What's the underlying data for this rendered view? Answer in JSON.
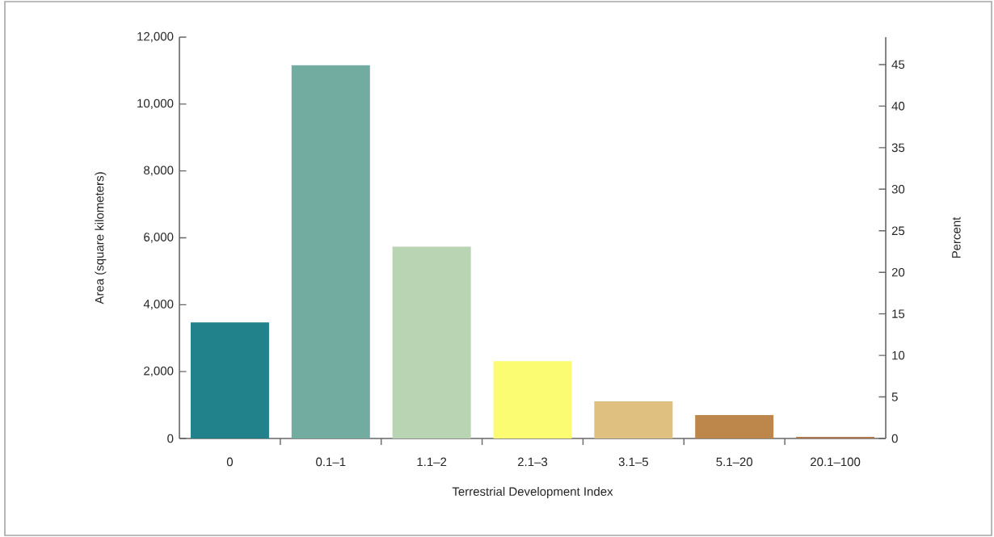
{
  "chart_data": {
    "type": "bar",
    "xlabel": "Terrestrial Development Index",
    "ylabel": "Area (square kilometers)",
    "y2label": "Percent",
    "categories": [
      "0",
      "0.1–1",
      "1.1–2",
      "2.1–3",
      "3.1–5",
      "5.1–20",
      "20.1–100"
    ],
    "values": [
      3470,
      11160,
      5740,
      2310,
      1110,
      700,
      50
    ],
    "colors": [
      "#22828c",
      "#72aba0",
      "#b8d4b2",
      "#fcfc73",
      "#dfc080",
      "#bd864b",
      "#b07a4e"
    ],
    "ylim": [
      0,
      12000
    ],
    "yticks": [
      0,
      {
        "value": 2000,
        "label": "2,000"
      },
      {
        "value": 4000,
        "label": "4,000"
      },
      {
        "value": 6000,
        "label": "6,000"
      },
      {
        "value": 8000,
        "label": "8,000"
      },
      {
        "value": 10000,
        "label": "10,000"
      },
      {
        "value": 12000,
        "label": "12,000"
      }
    ],
    "y2lim": [
      0,
      48.3
    ],
    "y2ticks": [
      0,
      5,
      10,
      15,
      20,
      25,
      30,
      35,
      40,
      45
    ]
  }
}
